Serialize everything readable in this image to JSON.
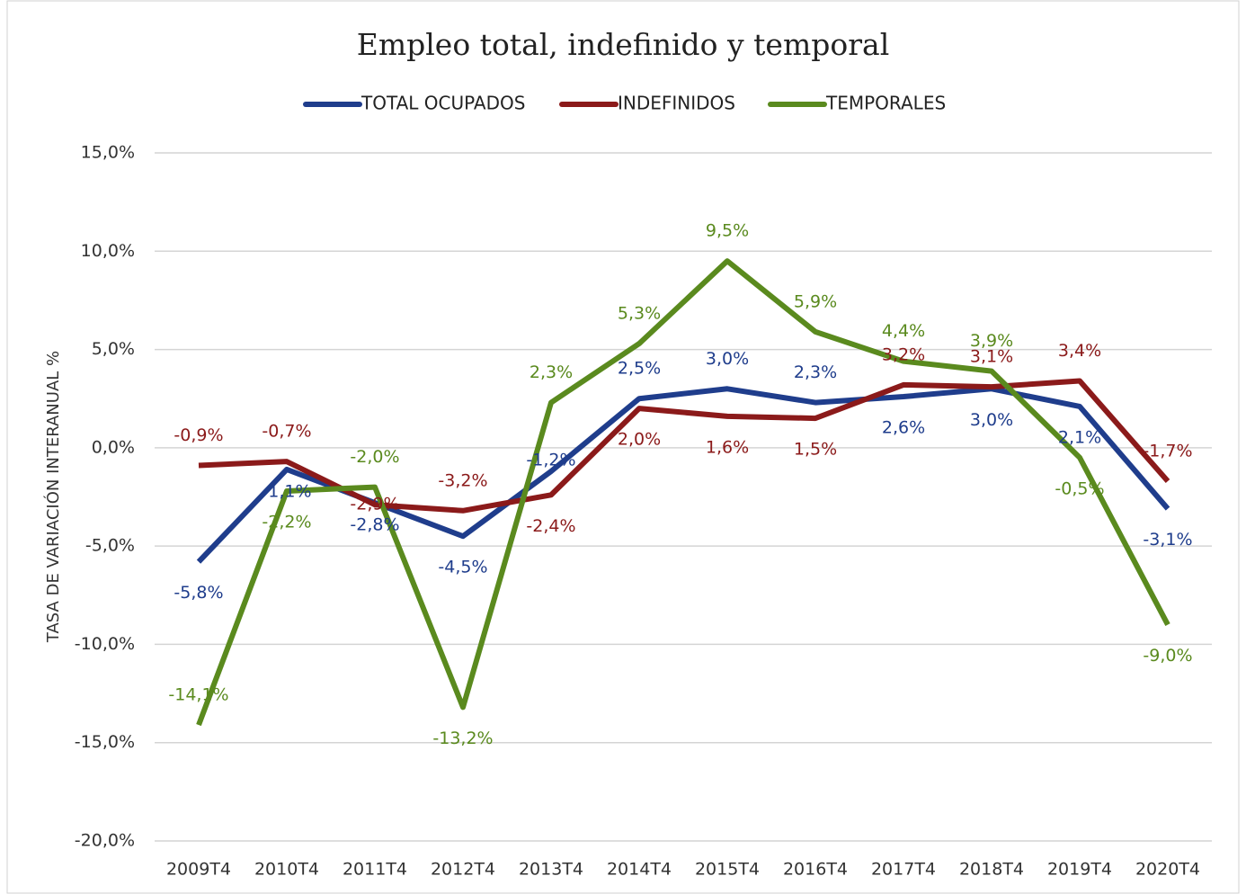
{
  "chart_data": {
    "type": "line",
    "title": "Empleo total, indefinido y temporal",
    "y_label": "TASA DE VARIACIÓN INTERANUAL %",
    "categories": [
      "2009T4",
      "2010T4",
      "2011T4",
      "2012T4",
      "2013T4",
      "2014T4",
      "2015T4",
      "2016T4",
      "2017T4",
      "2018T4",
      "2019T4",
      "2020T4"
    ],
    "series": [
      {
        "name": "TOTAL OCUPADOS",
        "color": "#1f3d8c",
        "values": [
          -5.8,
          -1.1,
          -2.8,
          -4.5,
          -1.2,
          2.5,
          3.0,
          2.3,
          2.6,
          3.0,
          2.1,
          -3.1
        ],
        "value_labels": [
          "-5,8%",
          "-1,1%",
          "-2,8%",
          "-4,5%",
          "-1,2%",
          "2,5%",
          "3,0%",
          "2,3%",
          "2,6%",
          "3,0%",
          "2,1%",
          "-3,1%"
        ]
      },
      {
        "name": "INDEFINIDOS",
        "color": "#8b1a1a",
        "values": [
          -0.9,
          -0.7,
          -2.9,
          -3.2,
          -2.4,
          2.0,
          1.6,
          1.5,
          3.2,
          3.1,
          3.4,
          -1.7
        ],
        "value_labels": [
          "-0,9%",
          "-0,7%",
          "-2,9%",
          "-3,2%",
          "-2,4%",
          "2,0%",
          "1,6%",
          "1,5%",
          "3,2%",
          "3,1%",
          "3,4%",
          "-1,7%"
        ]
      },
      {
        "name": "TEMPORALES",
        "color": "#5a8a1e",
        "values": [
          -14.1,
          -2.2,
          -2.0,
          -13.2,
          2.3,
          5.3,
          9.5,
          5.9,
          4.4,
          3.9,
          -0.5,
          -9.0
        ],
        "value_labels": [
          "-14,1%",
          "-2,2%",
          "-2,0%",
          "-13,2%",
          "2,3%",
          "5,3%",
          "9,5%",
          "5,9%",
          "4,4%",
          "3,9%",
          "-0,5%",
          "-9,0%"
        ]
      }
    ],
    "ylim": [
      -20,
      15
    ],
    "yticks": [
      {
        "value": -20,
        "label": "-20,0%"
      },
      {
        "value": -15,
        "label": "-15,0%"
      },
      {
        "value": -10,
        "label": "-10,0%"
      },
      {
        "value": -5,
        "label": "-5,0%"
      },
      {
        "value": 0,
        "label": "0,0%"
      },
      {
        "value": 5,
        "label": "5,0%"
      },
      {
        "value": 10,
        "label": "10,0%"
      },
      {
        "value": 15,
        "label": "15,0%"
      }
    ],
    "grid": true,
    "legend": "top"
  }
}
